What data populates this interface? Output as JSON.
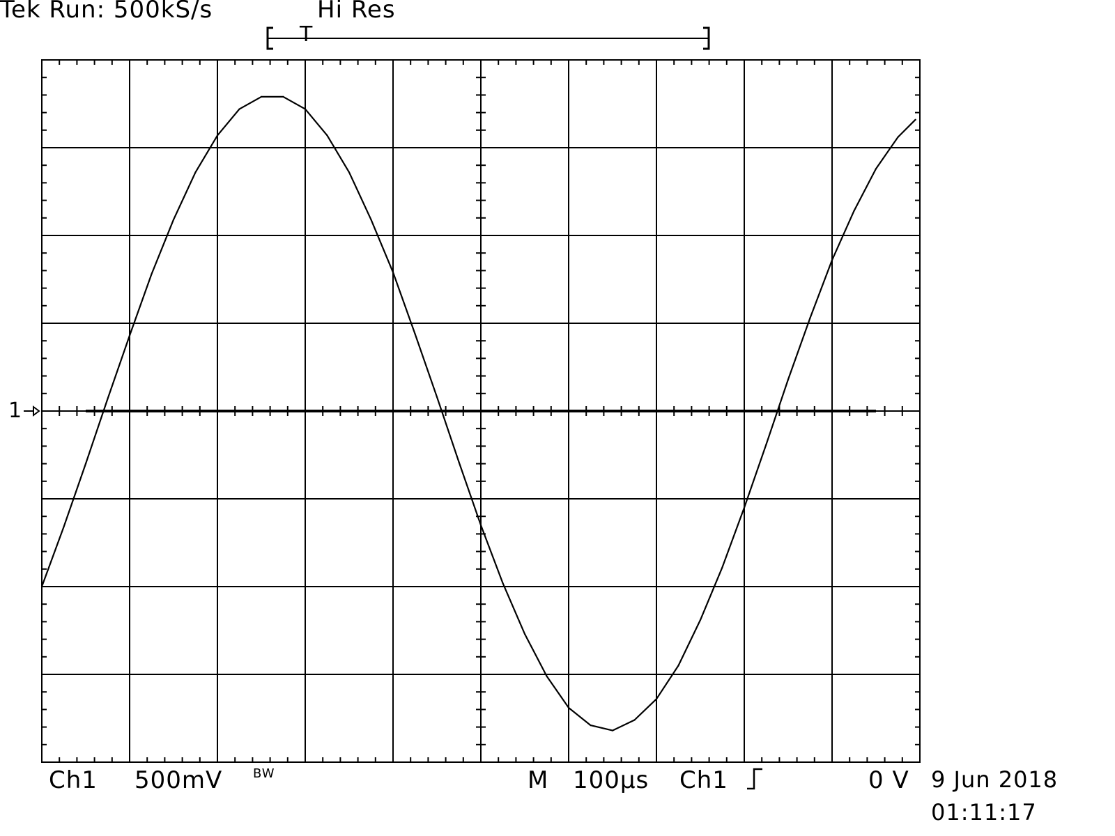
{
  "header": {
    "status": "Tek Run: 500kS/s",
    "mode": "Hi Res",
    "trigger_marker": "T"
  },
  "footer": {
    "channel": "Ch1",
    "volts_per_div": "500mV",
    "bandwidth_limit": "BW",
    "timebase_prefix": "M",
    "time_per_div": "100µs",
    "trigger_source": "Ch1",
    "trigger_slope_icon": "rising-edge-icon",
    "trigger_level": "0 V",
    "date": "9 Jun 2018",
    "time": "01:11:17"
  },
  "channel_marker": "1",
  "colors": {
    "background": "#ffffff",
    "trace": "#000000",
    "grid": "#000000"
  },
  "chart_data": {
    "type": "line",
    "title": "",
    "xlabel": "",
    "ylabel": "",
    "x_unit": "µs",
    "y_unit": "V",
    "xlim": [
      0,
      1000
    ],
    "ylim": [
      -2,
      2
    ],
    "grid": true,
    "divisions": {
      "x": 10,
      "y": 8
    },
    "series": [
      {
        "x": [
          0,
          25,
          50,
          75,
          100,
          125,
          150,
          175,
          200,
          225,
          250,
          275,
          300,
          325,
          350,
          375,
          400,
          425,
          450,
          475,
          500,
          525,
          550,
          575,
          600,
          625,
          650,
          675,
          700,
          725,
          750,
          775,
          800,
          825,
          850,
          875,
          900,
          925,
          950,
          975,
          995
        ],
        "values": [
          -1.0,
          -0.66,
          -0.3,
          0.07,
          0.43,
          0.78,
          1.09,
          1.36,
          1.57,
          1.72,
          1.79,
          1.79,
          1.72,
          1.57,
          1.36,
          1.09,
          0.79,
          0.44,
          0.08,
          -0.29,
          -0.65,
          -0.98,
          -1.27,
          -1.51,
          -1.69,
          -1.79,
          -1.82,
          -1.76,
          -1.64,
          -1.45,
          -1.19,
          -0.89,
          -0.55,
          -0.19,
          0.18,
          0.53,
          0.86,
          1.14,
          1.38,
          1.56,
          1.66
        ]
      }
    ],
    "baseline": [
      {
        "x": [
          50,
          950
        ],
        "values": [
          0,
          0
        ]
      }
    ],
    "trigger_window": {
      "x": [
        -250,
        250
      ]
    }
  }
}
